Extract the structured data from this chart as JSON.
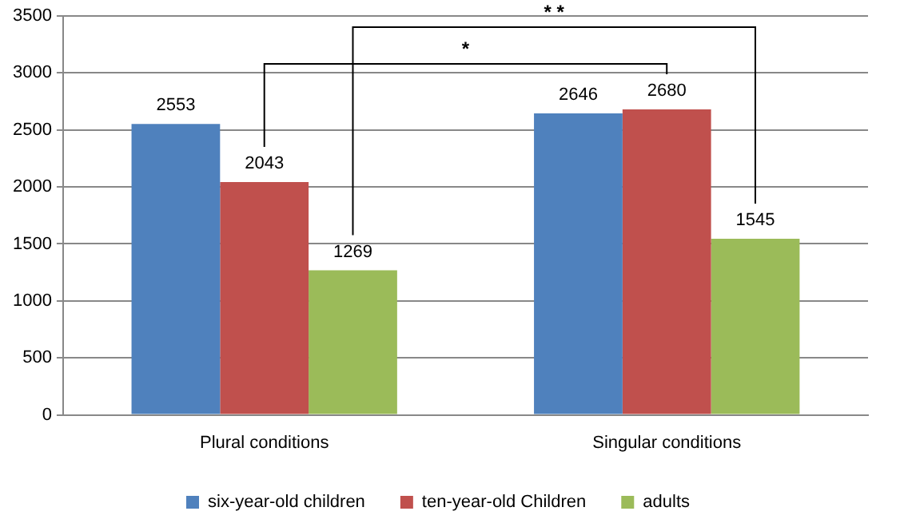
{
  "chart_data": {
    "type": "bar",
    "categories": [
      "Plural conditions",
      "Singular conditions"
    ],
    "series": [
      {
        "name": "six-year-old children",
        "color": "#4f81bd",
        "values": [
          2553,
          2646
        ]
      },
      {
        "name": "ten-year-old Children",
        "color": "#c0504d",
        "values": [
          2043,
          2680
        ]
      },
      {
        "name": "adults",
        "color": "#9bbb59",
        "values": [
          1269,
          1545
        ]
      }
    ],
    "ylim": [
      0,
      3500
    ],
    "yticks": [
      0,
      500,
      1000,
      1500,
      2000,
      2500,
      3000,
      3500
    ],
    "grid": "y",
    "legend": "bottom",
    "data_labels": true,
    "annotations": [
      "*",
      "* *"
    ]
  }
}
